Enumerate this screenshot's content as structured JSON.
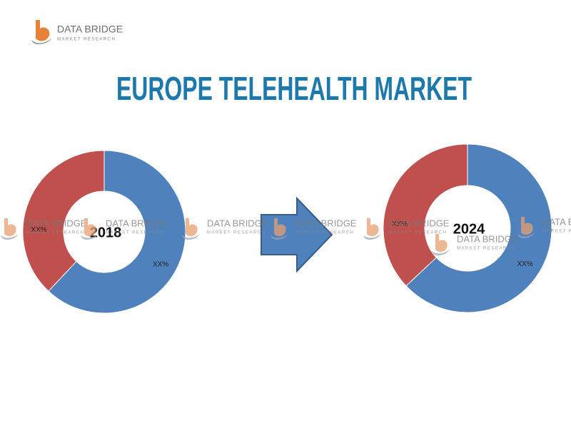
{
  "header": {
    "brand": "DATA BRIDGE",
    "tagline": "MARKET RESEARCH"
  },
  "title": "EUROPE TELEHEALTH MARKET",
  "chart_data": [
    {
      "type": "donut",
      "title": "2018",
      "categories": [
        null,
        null
      ],
      "values": [
        62,
        38
      ],
      "value_labels": [
        "XX%",
        "XX%"
      ],
      "colors": [
        "#4f81bd",
        "#c0504d"
      ]
    },
    {
      "type": "donut",
      "title": "2024",
      "categories": [
        null,
        null
      ],
      "values": [
        63,
        37
      ],
      "value_labels": [
        "XX%",
        "XX%"
      ],
      "colors": [
        "#4f81bd",
        "#c0504d"
      ]
    }
  ]
}
